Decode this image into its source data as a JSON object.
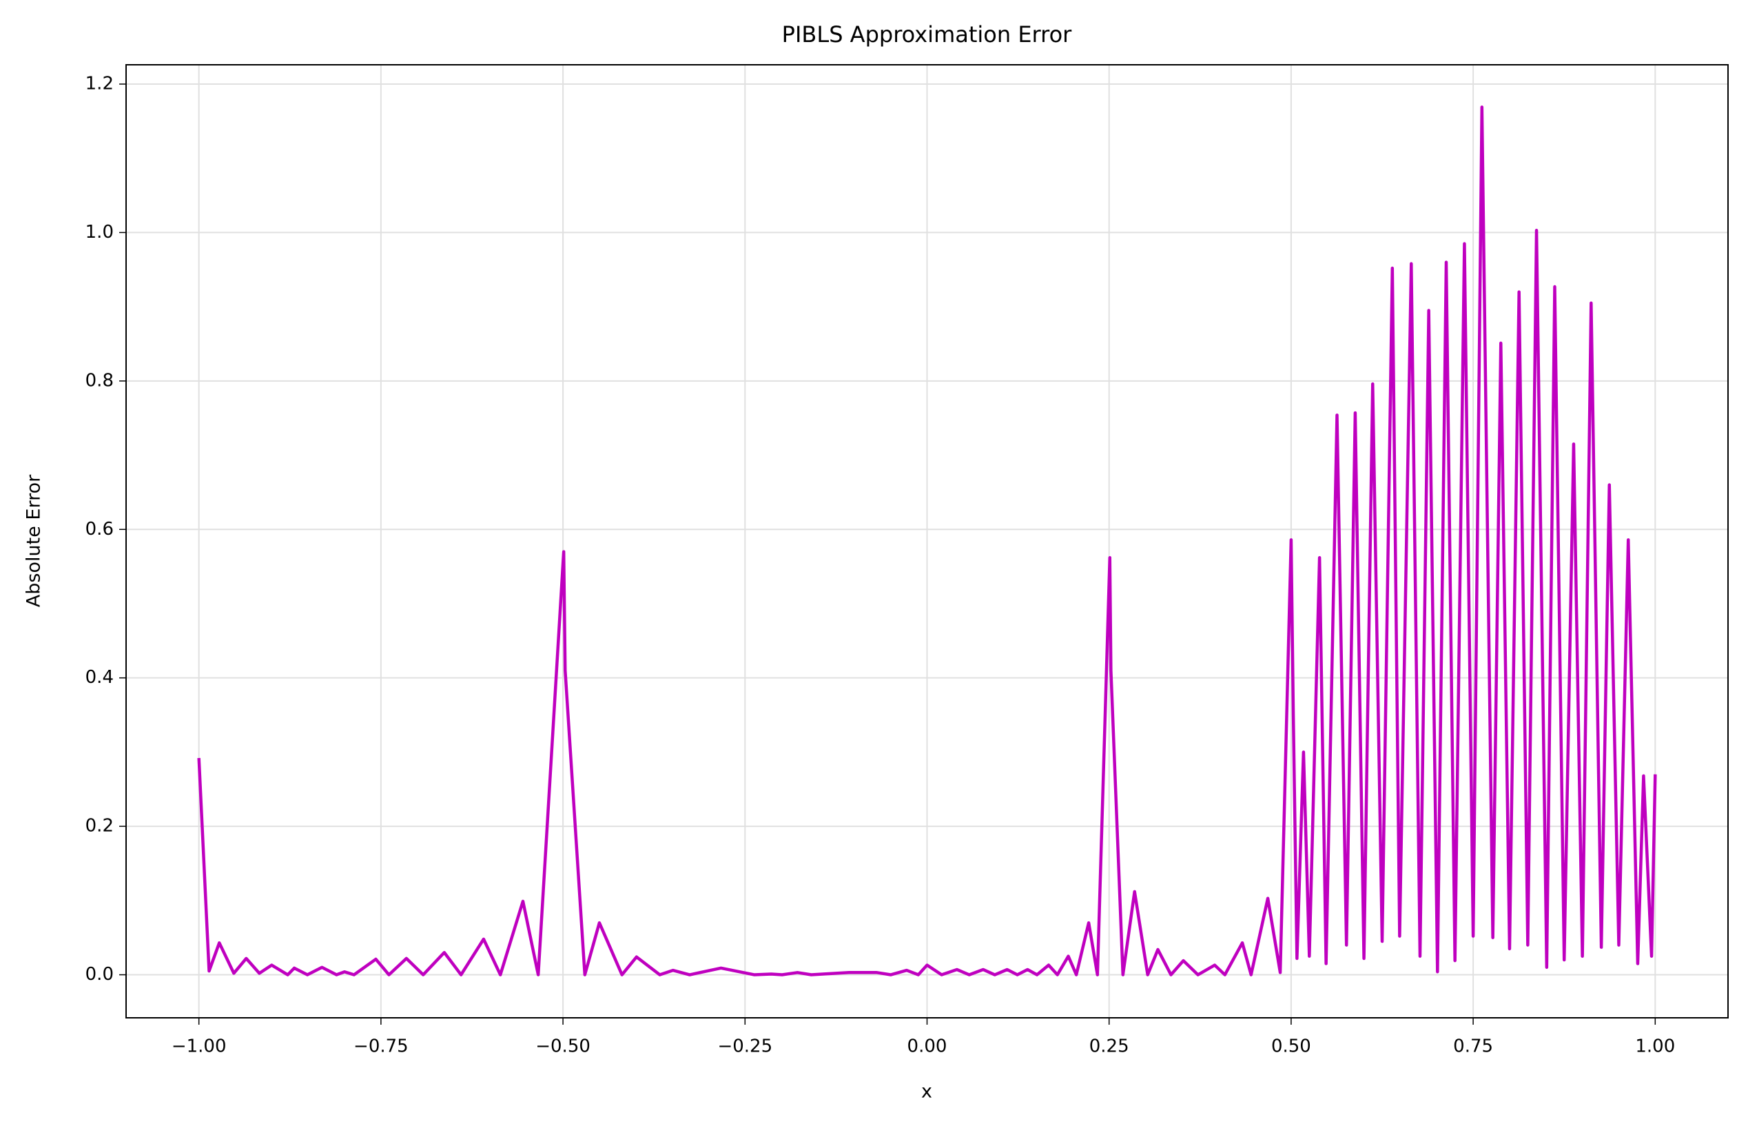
{
  "chart_data": {
    "type": "line",
    "title": "PIBLS Approximation Error",
    "xlabel": "x",
    "ylabel": "Absolute Error",
    "color": "#bf00bf",
    "grid": true,
    "xlim": [
      -1.1,
      1.1
    ],
    "ylim": [
      -0.058,
      1.226
    ],
    "xticks": [
      {
        "value": -1,
        "label": "−1.00"
      },
      {
        "value": -0.75,
        "label": "−0.75"
      },
      {
        "value": -0.5,
        "label": "−0.50"
      },
      {
        "value": -0.25,
        "label": "−0.25"
      },
      {
        "value": 0,
        "label": "0.00"
      },
      {
        "value": 0.25,
        "label": "0.25"
      },
      {
        "value": 0.5,
        "label": "0.50"
      },
      {
        "value": 0.75,
        "label": "0.75"
      },
      {
        "value": 1,
        "label": "1.00"
      }
    ],
    "yticks": [
      {
        "value": 0,
        "label": "0.0"
      },
      {
        "value": 0.2,
        "label": "0.2"
      },
      {
        "value": 0.4,
        "label": "0.4"
      },
      {
        "value": 0.6,
        "label": "0.6"
      },
      {
        "value": 0.8,
        "label": "0.8"
      },
      {
        "value": 1,
        "label": "1.0"
      },
      {
        "value": 1.2,
        "label": "1.2"
      }
    ],
    "x": [
      -1.0,
      -0.986,
      -0.972,
      -0.952,
      -0.935,
      -0.917,
      -0.9,
      -0.878,
      -0.869,
      -0.851,
      -0.831,
      -0.811,
      -0.8,
      -0.787,
      -0.757,
      -0.739,
      -0.715,
      -0.692,
      -0.663,
      -0.64,
      -0.609,
      -0.586,
      -0.555,
      -0.534,
      -0.499,
      -0.497,
      -0.47,
      -0.45,
      -0.419,
      -0.399,
      -0.367,
      -0.349,
      -0.326,
      -0.283,
      -0.237,
      -0.214,
      -0.199,
      -0.178,
      -0.159,
      -0.107,
      -0.069,
      -0.05,
      -0.028,
      -0.012,
      0.0,
      0.02,
      0.041,
      0.058,
      0.077,
      0.093,
      0.11,
      0.124,
      0.138,
      0.151,
      0.167,
      0.179,
      0.194,
      0.205,
      0.222,
      0.234,
      0.251,
      0.2525,
      0.269,
      0.285,
      0.303,
      0.317,
      0.335,
      0.352,
      0.372,
      0.395,
      0.409,
      0.433,
      0.445,
      0.468,
      0.485,
      0.5,
      0.503,
      0.508,
      0.517,
      0.525,
      0.539,
      0.548,
      0.563,
      0.576,
      0.588,
      0.6,
      0.612,
      0.625,
      0.639,
      0.649,
      0.665,
      0.677,
      0.689,
      0.701,
      0.713,
      0.725,
      0.738,
      0.75,
      0.762,
      0.777,
      0.788,
      0.8,
      0.813,
      0.825,
      0.837,
      0.851,
      0.862,
      0.875,
      0.888,
      0.9,
      0.912,
      0.926,
      0.937,
      0.95,
      0.963,
      0.976,
      0.984,
      0.995,
      1.0
    ],
    "values": [
      0.292,
      0.005,
      0.043,
      0.002,
      0.022,
      0.002,
      0.013,
      0.0,
      0.009,
      0.0,
      0.01,
      0.0,
      0.004,
      0.0,
      0.021,
      0.0,
      0.022,
      0.0,
      0.03,
      0.0,
      0.048,
      0.0,
      0.099,
      0.0,
      0.57,
      0.41,
      0.0,
      0.07,
      0.0,
      0.024,
      0.0,
      0.006,
      0.0,
      0.009,
      0.0,
      0.001,
      0.0,
      0.003,
      0.0,
      0.003,
      0.003,
      0.0,
      0.006,
      0.0,
      0.013,
      0.0,
      0.007,
      0.0,
      0.007,
      0.0,
      0.007,
      0.0,
      0.007,
      0.0,
      0.013,
      0.0,
      0.025,
      0.0,
      0.07,
      0.0,
      0.562,
      0.41,
      0.0,
      0.112,
      0.0,
      0.034,
      0.0,
      0.019,
      0.0,
      0.013,
      0.0,
      0.043,
      0.0,
      0.103,
      0.003,
      0.586,
      0.35,
      0.022,
      0.3,
      0.025,
      0.562,
      0.015,
      0.754,
      0.04,
      0.757,
      0.022,
      0.796,
      0.045,
      0.952,
      0.052,
      0.958,
      0.025,
      0.895,
      0.004,
      0.96,
      0.019,
      0.985,
      0.052,
      1.169,
      0.05,
      0.851,
      0.035,
      0.92,
      0.04,
      1.003,
      0.01,
      0.927,
      0.02,
      0.715,
      0.025,
      0.905,
      0.037,
      0.66,
      0.04,
      0.586,
      0.015,
      0.268,
      0.025,
      0.27
    ]
  }
}
